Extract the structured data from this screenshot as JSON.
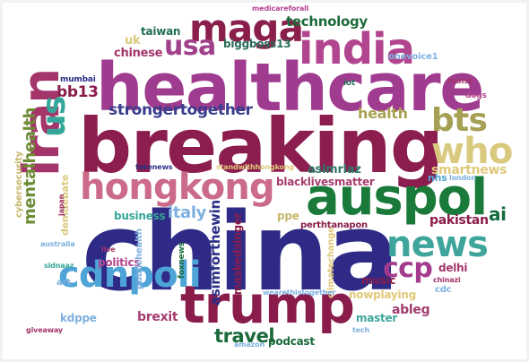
{
  "words": [
    {
      "text": "china",
      "color": "#2e2a86"
    },
    {
      "text": "breaking",
      "color": "#8b1e4f"
    },
    {
      "text": "healthcare",
      "color": "#a03c8f"
    },
    {
      "text": "auspol",
      "color": "#197a3a"
    },
    {
      "text": "iran",
      "color": "#a3356b"
    },
    {
      "text": "trump",
      "color": "#8a1c4b"
    },
    {
      "text": "india",
      "color": "#b2458f"
    },
    {
      "text": "hongkong",
      "color": "#cc6a89"
    },
    {
      "text": "maga",
      "color": "#8a1f4c"
    },
    {
      "text": "news",
      "color": "#3fa59c"
    },
    {
      "text": "who",
      "color": "#d9c97e"
    },
    {
      "text": "cdnpoli",
      "color": "#4ea4d6"
    },
    {
      "text": "bts",
      "color": "#a6a055"
    },
    {
      "text": "us",
      "color": "#35a79a"
    },
    {
      "text": "usa",
      "color": "#a0408a"
    },
    {
      "text": "ccp",
      "color": "#a33c8e"
    },
    {
      "text": "strongertogether",
      "color": "#3a3d8c"
    },
    {
      "text": "mentalhealth",
      "color": "#6e8c35"
    },
    {
      "text": "travel",
      "color": "#1b6a3b"
    },
    {
      "text": "technology",
      "color": "#1c6a3a"
    },
    {
      "text": "italy",
      "color": "#7eb0df"
    },
    {
      "text": "bb13",
      "color": "#8a1c4b"
    },
    {
      "text": "health",
      "color": "#a8a154"
    },
    {
      "text": "ai",
      "color": "#156a3f"
    },
    {
      "text": "smartnews",
      "color": "#e0c87a"
    },
    {
      "text": "blacklivesmatter",
      "color": "#a63d6f"
    },
    {
      "text": "asimriaz",
      "color": "#2f7a6a"
    },
    {
      "text": "pakistan",
      "color": "#8a1c4b"
    },
    {
      "text": "abIeg",
      "color": "#a33c6f"
    },
    {
      "text": "brexit",
      "color": "#a33c6f"
    },
    {
      "text": "chinese",
      "color": "#a3356b"
    },
    {
      "text": "uk",
      "color": "#d9c97e"
    },
    {
      "text": "taiwan",
      "color": "#1f6d58"
    },
    {
      "text": "biggboss13",
      "color": "#2a6d5a"
    },
    {
      "text": "business",
      "color": "#35a79a"
    },
    {
      "text": "ppe",
      "color": "#c7b86b"
    },
    {
      "text": "podcast",
      "color": "#1c6a3a"
    },
    {
      "text": "delhi",
      "color": "#a3356b"
    },
    {
      "text": "music",
      "color": "#8a1c4b"
    },
    {
      "text": "master",
      "color": "#3fa59c"
    },
    {
      "text": "politics",
      "color": "#b2458f"
    },
    {
      "text": "nowplaying",
      "color": "#e0c87a"
    },
    {
      "text": "kdppe",
      "color": "#7eb0df"
    },
    {
      "text": "art",
      "color": "#7eb0df"
    },
    {
      "text": "cdc",
      "color": "#7eb0df"
    },
    {
      "text": "nhs",
      "color": "#4ea4d6"
    },
    {
      "text": "asimforthewin",
      "color": "#2a2f86"
    },
    {
      "text": "themaskedsinger",
      "color": "#8a1c4b"
    },
    {
      "text": "publichealth",
      "color": "#7eb0df"
    },
    {
      "text": "climatechange",
      "color": "#e0c87a"
    },
    {
      "text": "foxnews",
      "color": "#1b6a3b"
    },
    {
      "text": "cybersecurity",
      "color": "#c7b86b"
    },
    {
      "text": "demdebate",
      "color": "#d9c97e"
    },
    {
      "text": "perthtanapon",
      "color": "#8a1c4b"
    },
    {
      "text": "onevoice1",
      "color": "#7eb0df"
    },
    {
      "text": "medicareforall",
      "color": "#b2458f"
    },
    {
      "text": "mumbai",
      "color": "#2a2f86"
    },
    {
      "text": "iot",
      "color": "#2a6d5a"
    },
    {
      "text": "resist",
      "color": "#a3356b"
    },
    {
      "text": "dogs",
      "color": "#b2458f"
    },
    {
      "text": "fakenews",
      "color": "#2a2f86"
    },
    {
      "text": "standwithhongkong",
      "color": "#e0c87a"
    },
    {
      "text": "london",
      "color": "#7eb0df"
    },
    {
      "text": "japan",
      "color": "#a3356b"
    },
    {
      "text": "australia",
      "color": "#7eb0df"
    },
    {
      "text": "sidnaaz",
      "color": "#35a79a"
    },
    {
      "text": "live",
      "color": "#a3356b"
    },
    {
      "text": "chinazi",
      "color": "#a3356b"
    },
    {
      "text": "wearethistogether",
      "color": "#7eb0df"
    },
    {
      "text": "giveaway",
      "color": "#a3356b"
    },
    {
      "text": "amazon",
      "color": "#7eb0df"
    },
    {
      "text": "tech",
      "color": "#7eb0df"
    }
  ]
}
